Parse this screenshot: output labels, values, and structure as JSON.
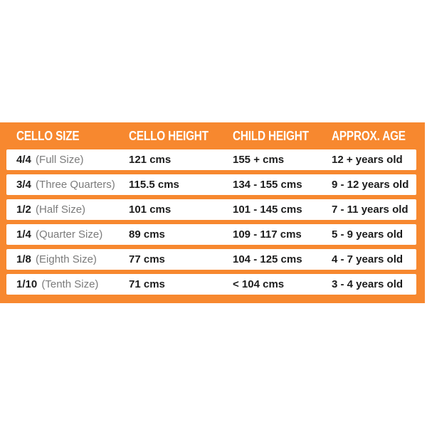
{
  "chart_data": {
    "type": "table",
    "columns": [
      "CELLO SIZE",
      "CELLO HEIGHT",
      "CHILD HEIGHT",
      "APPROX. AGE"
    ],
    "rows": [
      {
        "size": "4/4",
        "size_note": "(Full Size)",
        "cello_height": "121 cms",
        "child_height": "155 + cms",
        "approx_age": "12 + years old"
      },
      {
        "size": "3/4",
        "size_note": "(Three Quarters)",
        "cello_height": "115.5 cms",
        "child_height": "134 - 155 cms",
        "approx_age": "9 - 12 years old"
      },
      {
        "size": "1/2",
        "size_note": "(Half Size)",
        "cello_height": "101 cms",
        "child_height": "101 - 145 cms",
        "approx_age": "7 - 11 years old"
      },
      {
        "size": "1/4",
        "size_note": "(Quarter Size)",
        "cello_height": "89 cms",
        "child_height": "109 - 117 cms",
        "approx_age": "5 - 9 years old"
      },
      {
        "size": "1/8",
        "size_note": "(Eighth Size)",
        "cello_height": "77 cms",
        "child_height": "104 - 125 cms",
        "approx_age": "4 - 7 years old"
      },
      {
        "size": "1/10",
        "size_note": "(Tenth Size)",
        "cello_height": "71 cms",
        "child_height": "< 104 cms",
        "approx_age": "3 - 4 years old"
      }
    ]
  },
  "style": {
    "accent_orange": "#F7882F",
    "row_background": "#FFFFFF",
    "header_text_color": "#FFFFFF",
    "value_text_color": "#1C1C1C",
    "note_text_color": "#7B7B7B"
  }
}
